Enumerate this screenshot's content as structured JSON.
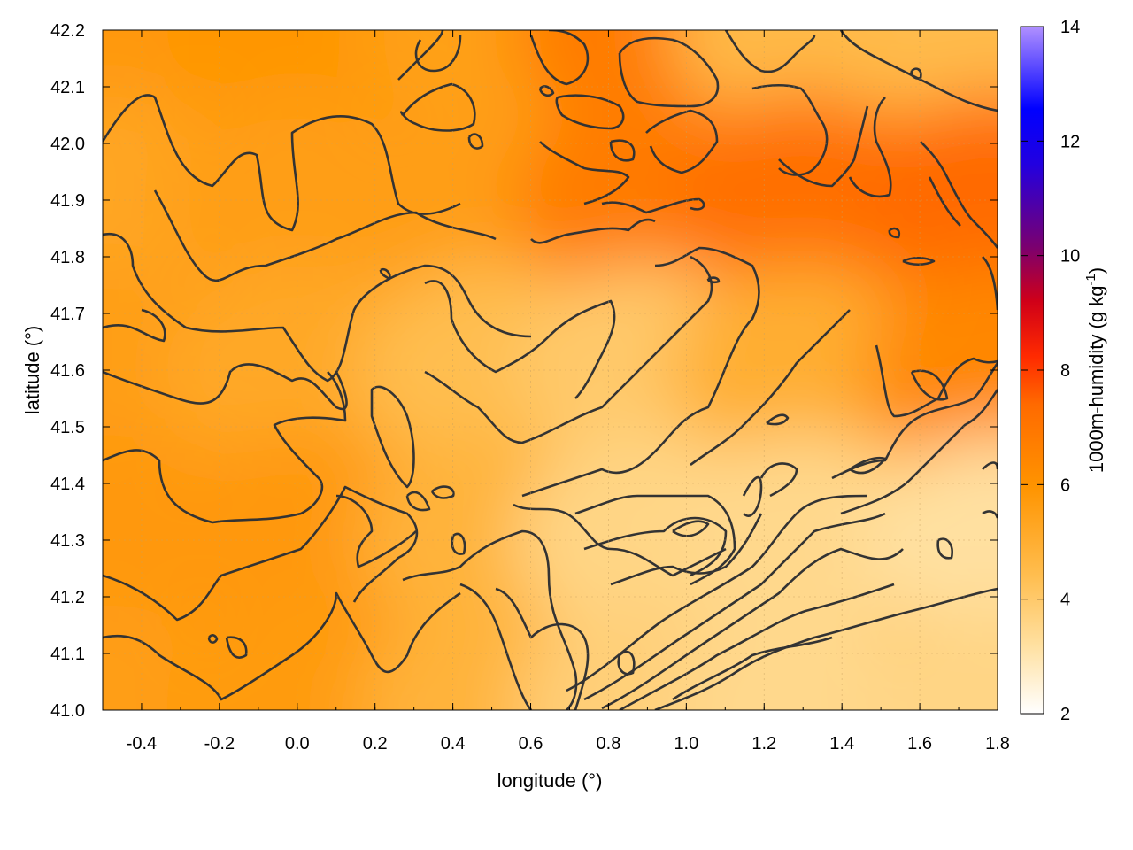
{
  "chart_data": {
    "type": "heatmap",
    "title": "",
    "xlabel": "longitude (°)",
    "ylabel": "latitude (°)",
    "colorbar_label": "1000m-humidity (g kg",
    "colorbar_label_sup": "-1",
    "colorbar_label_end": ")",
    "xlim": [
      -0.5,
      1.8
    ],
    "ylim": [
      41.0,
      42.2
    ],
    "x_ticks": [
      -0.4,
      -0.2,
      0.0,
      0.2,
      0.4,
      0.6,
      0.8,
      1.0,
      1.2,
      1.4,
      1.6,
      1.8
    ],
    "x_tick_labels": [
      "-0.4",
      "-0.2",
      "0.0",
      "0.2",
      "0.4",
      "0.6",
      "0.8",
      "1.0",
      "1.2",
      "1.4",
      "1.6",
      "1.8"
    ],
    "y_ticks": [
      41.0,
      41.1,
      41.2,
      41.3,
      41.4,
      41.5,
      41.6,
      41.7,
      41.8,
      41.9,
      42.0,
      42.1,
      42.2
    ],
    "y_tick_labels": [
      "41.0",
      "41.1",
      "41.2",
      "41.3",
      "41.4",
      "41.5",
      "41.6",
      "41.7",
      "41.8",
      "41.9",
      "42.0",
      "42.1",
      "42.2"
    ],
    "colorbar_range": [
      2,
      14
    ],
    "colorbar_ticks": [
      2,
      4,
      6,
      8,
      10,
      12,
      14
    ],
    "colorbar_tick_labels": [
      "2",
      "4",
      "6",
      "8",
      "10",
      "12",
      "14"
    ],
    "colormap": [
      "#ffffff",
      "#ffcc66",
      "#ff9900",
      "#ff6600",
      "#ff0000",
      "#6600aa",
      "#0000ff",
      "#aa88ff"
    ],
    "grid": true,
    "contours": true,
    "field_regions": [
      {
        "lon": -0.5,
        "lat": 42.2,
        "value": 5.8
      },
      {
        "lon": 0.0,
        "lat": 42.2,
        "value": 5.9
      },
      {
        "lon": 0.5,
        "lat": 42.2,
        "value": 5.5
      },
      {
        "lon": 0.9,
        "lat": 42.2,
        "value": 6.8
      },
      {
        "lon": 1.3,
        "lat": 42.2,
        "value": 4.6
      },
      {
        "lon": 1.8,
        "lat": 42.2,
        "value": 4.5
      },
      {
        "lon": -0.5,
        "lat": 41.9,
        "value": 5.3
      },
      {
        "lon": 0.0,
        "lat": 41.9,
        "value": 5.6
      },
      {
        "lon": 0.5,
        "lat": 41.9,
        "value": 5.6
      },
      {
        "lon": 0.9,
        "lat": 41.9,
        "value": 6.8
      },
      {
        "lon": 1.3,
        "lat": 41.9,
        "value": 7.2
      },
      {
        "lon": 1.8,
        "lat": 41.9,
        "value": 7.4
      },
      {
        "lon": -0.5,
        "lat": 41.6,
        "value": 5.6
      },
      {
        "lon": 0.0,
        "lat": 41.6,
        "value": 5.2
      },
      {
        "lon": 0.5,
        "lat": 41.6,
        "value": 4.4
      },
      {
        "lon": 0.9,
        "lat": 41.6,
        "value": 4.0
      },
      {
        "lon": 1.3,
        "lat": 41.6,
        "value": 5.0
      },
      {
        "lon": 1.8,
        "lat": 41.6,
        "value": 6.4
      },
      {
        "lon": -0.5,
        "lat": 41.3,
        "value": 5.8
      },
      {
        "lon": 0.0,
        "lat": 41.3,
        "value": 5.8
      },
      {
        "lon": 0.5,
        "lat": 41.3,
        "value": 4.8
      },
      {
        "lon": 0.9,
        "lat": 41.3,
        "value": 3.6
      },
      {
        "lon": 1.3,
        "lat": 41.3,
        "value": 3.5
      },
      {
        "lon": 1.8,
        "lat": 41.3,
        "value": 3.2
      },
      {
        "lon": -0.5,
        "lat": 41.0,
        "value": 5.6
      },
      {
        "lon": 0.0,
        "lat": 41.0,
        "value": 5.7
      },
      {
        "lon": 0.5,
        "lat": 41.0,
        "value": 4.8
      },
      {
        "lon": 0.9,
        "lat": 41.0,
        "value": 3.8
      },
      {
        "lon": 1.3,
        "lat": 41.0,
        "value": 3.5
      },
      {
        "lon": 1.8,
        "lat": 41.0,
        "value": 3.6
      }
    ]
  }
}
